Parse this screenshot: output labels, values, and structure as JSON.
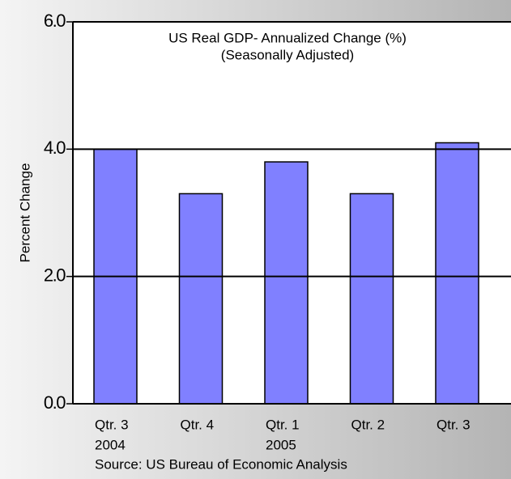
{
  "chart_data": {
    "type": "bar",
    "title": "US Real GDP- Annualized Change (%)",
    "subtitle": "(Seasonally Adjusted)",
    "y_label": "Percent Change",
    "source": "Source: US Bureau of Economic Analysis",
    "categories": [
      [
        "Qtr. 3",
        "2004"
      ],
      [
        "Qtr. 4"
      ],
      [
        "Qtr. 1",
        "2005"
      ],
      [
        "Qtr. 2"
      ],
      [
        "Qtr. 3"
      ]
    ],
    "values": [
      4.0,
      3.3,
      3.8,
      3.3,
      4.1
    ],
    "color": "#8080ff",
    "ylim": [
      0,
      6
    ],
    "yticks": [
      {
        "value": 0,
        "label": "0.0"
      },
      {
        "value": 2,
        "label": "2.0"
      },
      {
        "value": 4,
        "label": "4.0"
      },
      {
        "value": 6,
        "label": "6.0"
      }
    ],
    "grid": true
  }
}
